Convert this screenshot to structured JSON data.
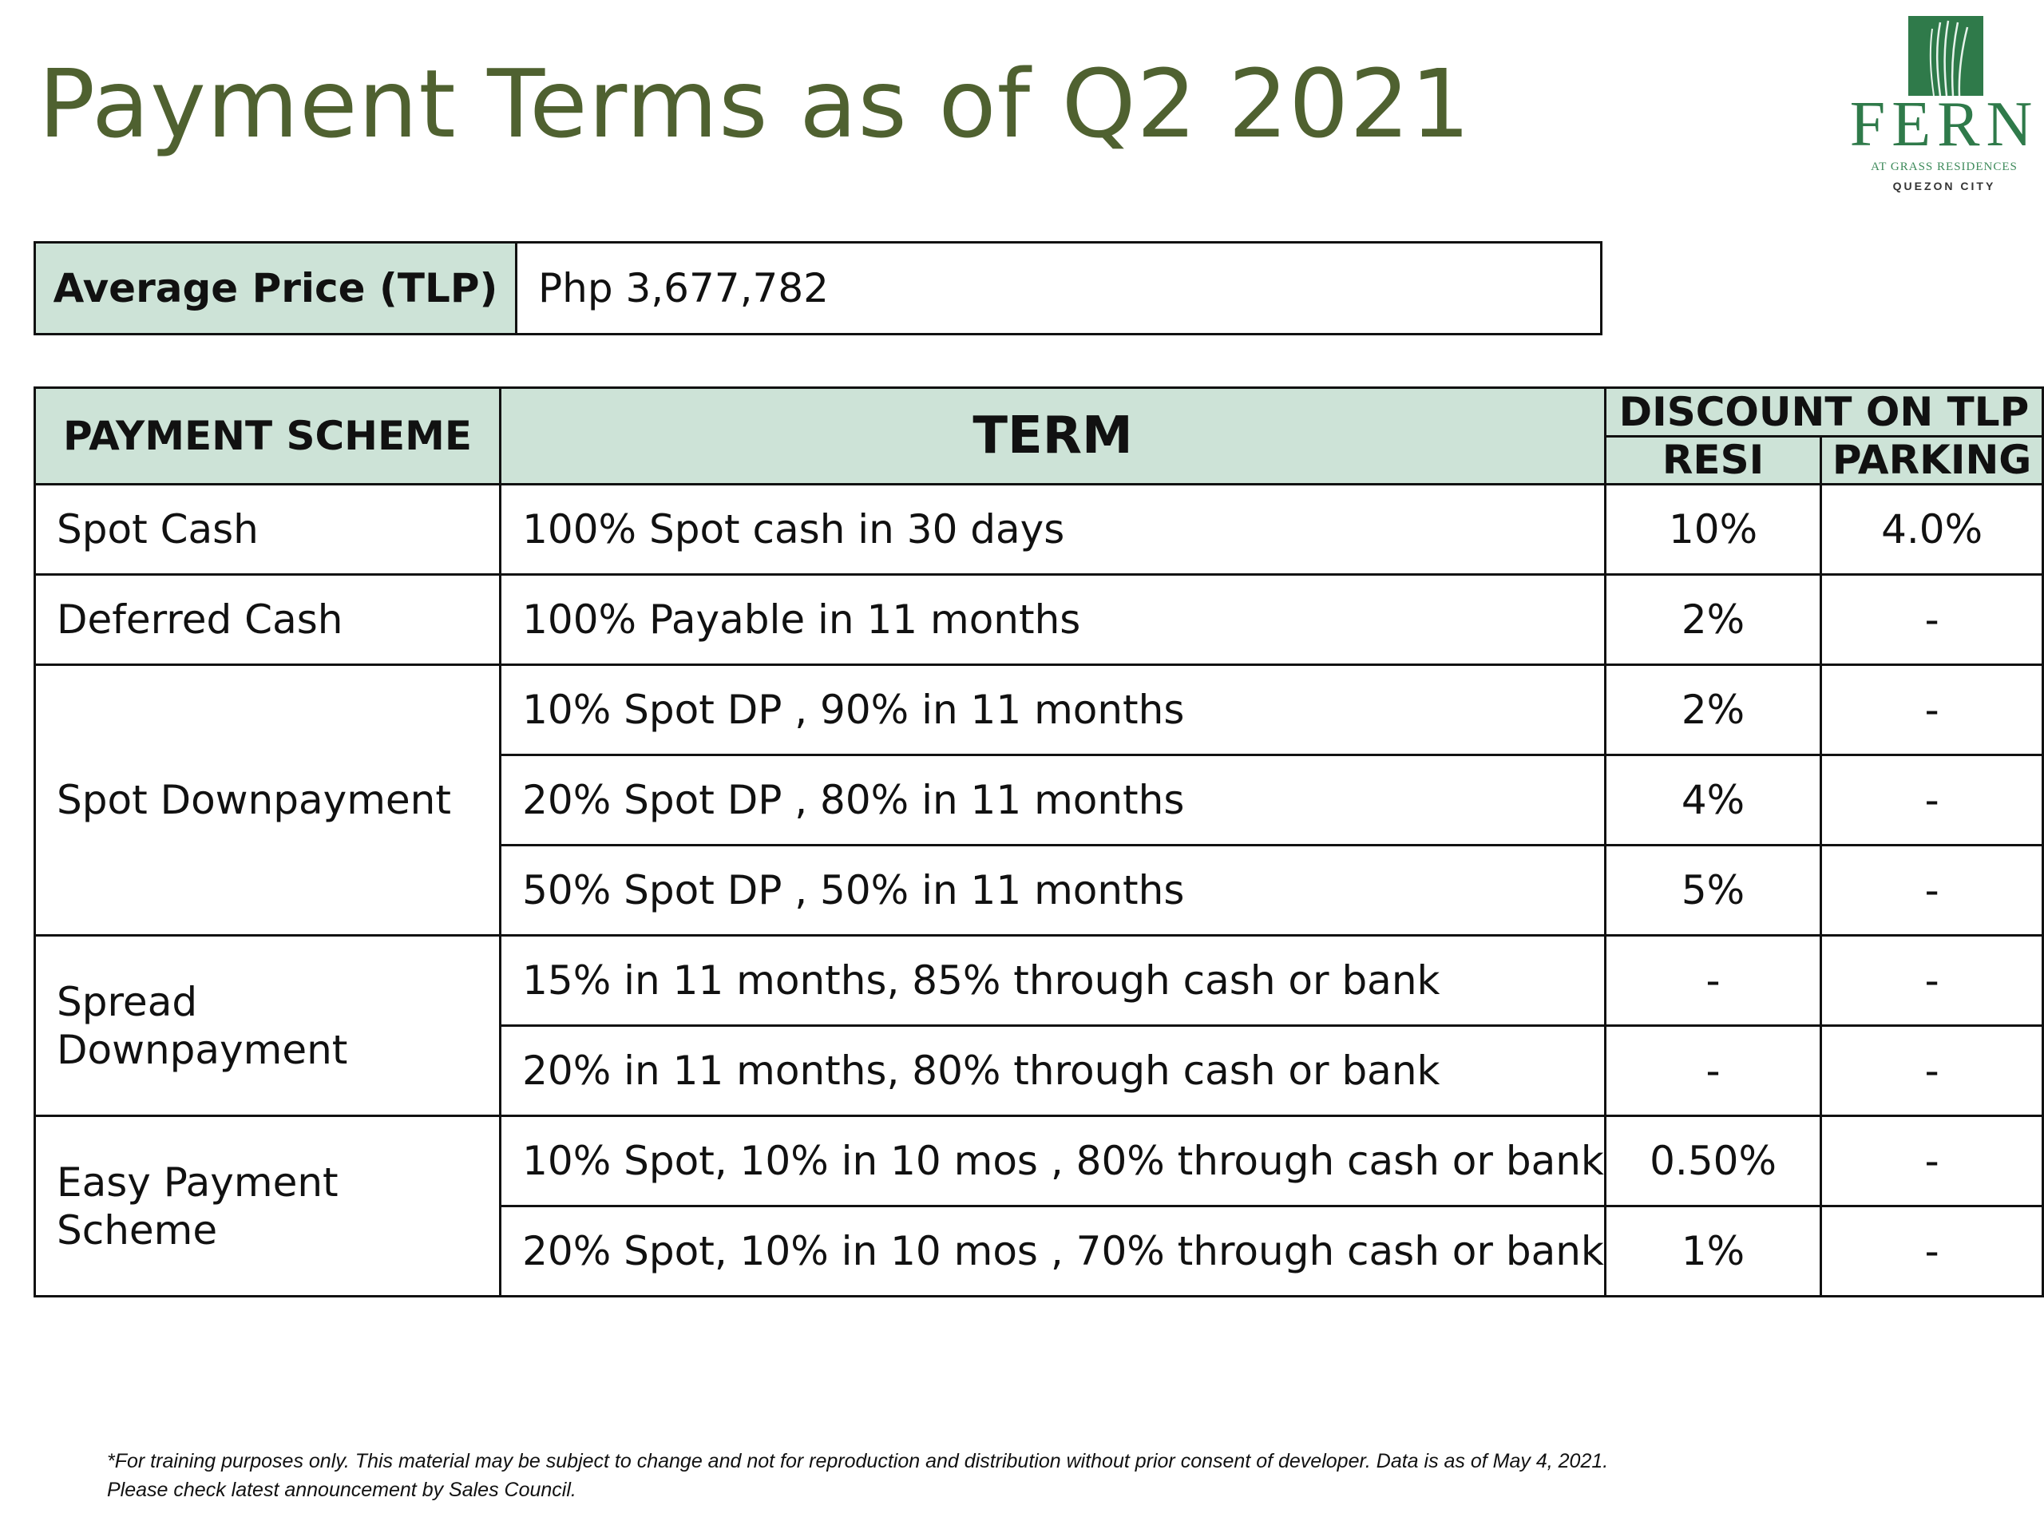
{
  "title": "Payment Terms as of Q2 2021",
  "logo": {
    "name": "FERN",
    "subtitle": "AT GRASS RESIDENCES",
    "city": "QUEZON CITY",
    "color": "#2f7a4a"
  },
  "colors": {
    "title": "#4f6130",
    "header_fill": "#cde3d7",
    "border": "#111111"
  },
  "average_price": {
    "label": "Average Price (TLP)",
    "value": "Php 3,677,782"
  },
  "table": {
    "headers": {
      "scheme": "PAYMENT SCHEME",
      "term": "TERM",
      "discount": "DISCOUNT ON TLP",
      "resi": "RESI",
      "parking": "PARKING"
    },
    "rows": [
      {
        "scheme": "Spot Cash",
        "term": "100% Spot cash in 30 days",
        "resi": "10%",
        "parking": "4.0%"
      },
      {
        "scheme": "Deferred Cash",
        "term": "100% Payable in 11 months",
        "resi": "2%",
        "parking": "-"
      },
      {
        "scheme": "Spot Downpayment",
        "term": "10% Spot DP , 90% in 11 months",
        "resi": "2%",
        "parking": "-"
      },
      {
        "scheme": "",
        "term": "20% Spot DP , 80% in 11 months",
        "resi": "4%",
        "parking": "-"
      },
      {
        "scheme": "",
        "term": "50% Spot DP , 50% in 11 months",
        "resi": "5%",
        "parking": "-"
      },
      {
        "scheme": "Spread Downpayment",
        "term": "15% in 11 months, 85% through cash or bank",
        "resi": "-",
        "parking": "-"
      },
      {
        "scheme": "",
        "term": "20% in 11 months, 80% through cash or bank",
        "resi": "-",
        "parking": "-"
      },
      {
        "scheme": "Easy Payment Scheme",
        "term": "10% Spot, 10% in 10 mos , 80% through cash or bank",
        "resi": "0.50%",
        "parking": "-"
      },
      {
        "scheme": "",
        "term": "20% Spot, 10% in 10 mos , 70% through cash or bank",
        "resi": "1%",
        "parking": "-"
      }
    ]
  },
  "footnote": {
    "line1": "*For training purposes only. This material may be subject to change and not for reproduction and distribution without prior consent of developer. Data is as of May 4, 2021.",
    "line2": "Please check latest announcement by Sales Council."
  }
}
